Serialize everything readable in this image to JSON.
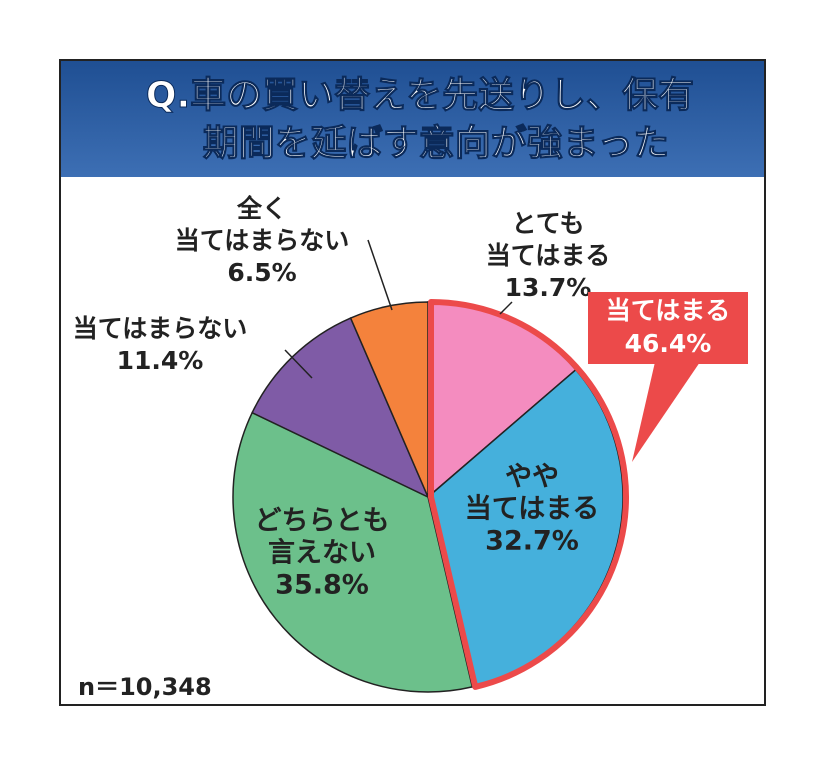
{
  "chart_data": {
    "type": "pie",
    "title": [
      "Q.車の買い替えを先送りし、保有",
      "期間を延ばす意向が強まった"
    ],
    "categories": [
      [
        "とても",
        "当てはまる"
      ],
      [
        "やや",
        "当てはまる"
      ],
      [
        "どちらとも",
        "言えない"
      ],
      [
        "当てはまらない"
      ],
      [
        "全く",
        "当てはまらない"
      ]
    ],
    "values": [
      13.7,
      32.7,
      35.8,
      11.4,
      6.5
    ],
    "value_labels": [
      "13.7%",
      "32.7%",
      "35.8%",
      "11.4%",
      "6.5%"
    ],
    "colors": [
      "#f48cbf",
      "#45b0dc",
      "#6cc08b",
      "#7f5ba6",
      "#f4823c"
    ],
    "highlight": {
      "label": "当てはまる",
      "value": 46.4,
      "value_label": "46.4%",
      "color": "#ec4a4a"
    },
    "note": "n＝10,348"
  }
}
